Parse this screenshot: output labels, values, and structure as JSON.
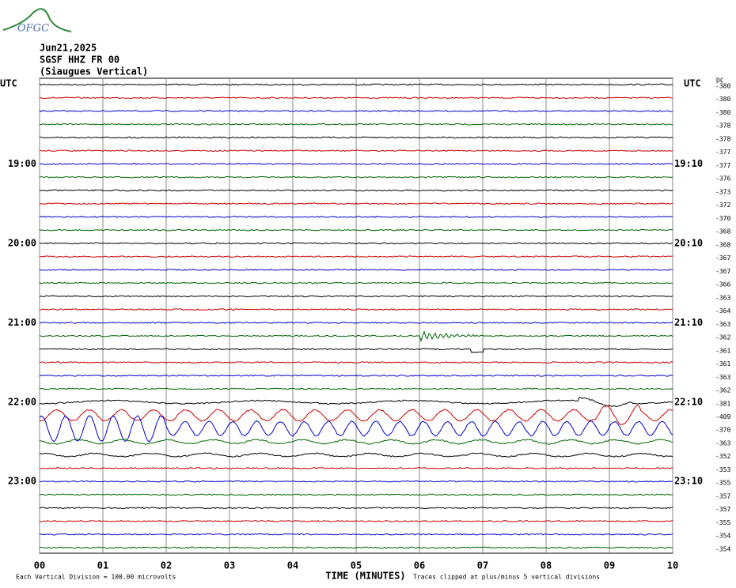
{
  "logo": "OFGC",
  "header": {
    "date": "Jun21,2025",
    "station": "SGSF HHZ FR 00",
    "component": "(Siaugues Vertical)"
  },
  "left_timezone": "UTC",
  "right_timezone": "UTC",
  "dc_header": "DC",
  "left_hour_labels": [
    "19:00",
    "20:00",
    "21:00",
    "22:00",
    "23:00"
  ],
  "right_hour_labels": [
    "19:10",
    "20:10",
    "21:10",
    "22:10",
    "23:10"
  ],
  "dc_values": [
    "-380",
    "-380",
    "-380",
    "-378",
    "-378",
    "-377",
    "-377",
    "-376",
    "-373",
    "-372",
    "-370",
    "-368",
    "-368",
    "-367",
    "-367",
    "-366",
    "-363",
    "-364",
    "-363",
    "-362",
    "-361",
    "-361",
    "-363",
    "-362",
    "-381",
    "-409",
    "-370",
    "-363",
    "-352",
    "-353",
    "-355",
    "-357",
    "-357",
    "-355",
    "-354",
    "-354"
  ],
  "x_tick_labels": [
    "00",
    "01",
    "02",
    "03",
    "04",
    "05",
    "06",
    "07",
    "08",
    "09",
    "10"
  ],
  "x_axis_title": "TIME (MINUTES)",
  "scale_note": "Each Vertical Division =  100.00 microvolts",
  "clip_note": "Traces clipped at plus/minus 5 vertical divisions"
}
